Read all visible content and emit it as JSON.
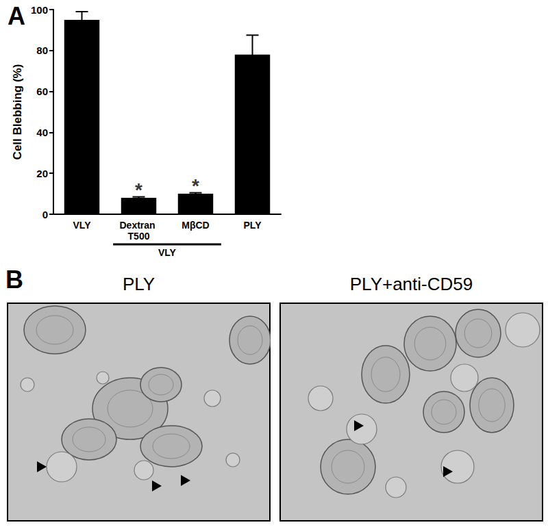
{
  "chart_data": {
    "type": "bar",
    "panel_label": "A",
    "y_label": "Cell Blebbing (%)",
    "categories": [
      "VLY",
      "Dextran T500",
      "MβCD",
      "PLY"
    ],
    "values": [
      95,
      8,
      10,
      78
    ],
    "errors": [
      4,
      0.5,
      0.5,
      9.5
    ],
    "color": "#000000",
    "ylim": [
      0,
      100
    ],
    "yticks": [
      0,
      20,
      40,
      60,
      80,
      100
    ],
    "grid": false,
    "annotations": [
      {
        "text": "*",
        "category": "Dextran T500"
      },
      {
        "text": "*",
        "category": "MβCD"
      }
    ],
    "group_label": {
      "text": "VLY",
      "categories": [
        "Dextran T500",
        "MβCD"
      ]
    }
  },
  "images": {
    "panel_label": "B",
    "titles": [
      "PLY",
      "PLY+anti-CD59"
    ]
  }
}
